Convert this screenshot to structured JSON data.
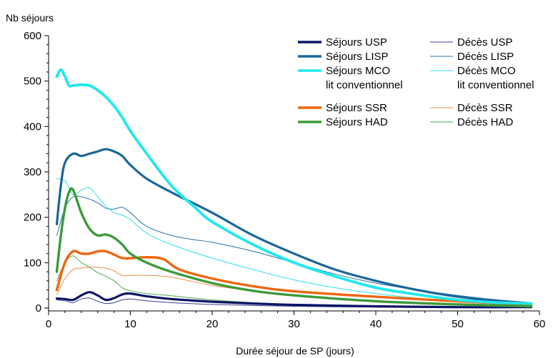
{
  "chart_data": {
    "type": "line",
    "title": "",
    "ylabel": "Nb séjours",
    "xlabel": "Durée séjour de SP (jours)",
    "xlim": [
      0,
      60
    ],
    "ylim": [
      0,
      600
    ],
    "xticks": [
      "0",
      "10",
      "20",
      "30",
      "40",
      "50",
      "60"
    ],
    "yticks": [
      "0",
      "100",
      "200",
      "300",
      "400",
      "500",
      "600"
    ],
    "grid": false,
    "legend_position": "top-right",
    "series": [
      {
        "name": "Séjours USP",
        "label_lines": [
          "Séjours USP"
        ],
        "color": "#0d1566",
        "width": 3.2,
        "x": [
          1,
          2,
          3,
          4,
          5,
          6,
          7,
          8,
          9,
          10,
          12,
          15,
          20,
          25,
          30,
          40,
          50,
          59
        ],
        "y": [
          21,
          20,
          18,
          28,
          35,
          28,
          18,
          22,
          30,
          32,
          26,
          20,
          14,
          10,
          7,
          4,
          2,
          2
        ]
      },
      {
        "name": "Séjours LISP",
        "label_lines": [
          "Séjours LISP"
        ],
        "color": "#1b6698",
        "width": 3.2,
        "x": [
          1,
          1.5,
          2,
          3,
          4,
          5,
          6,
          7,
          8,
          9,
          10,
          12,
          15,
          20,
          25,
          30,
          35,
          40,
          45,
          50,
          55,
          59
        ],
        "y": [
          185,
          270,
          320,
          340,
          335,
          340,
          345,
          350,
          345,
          335,
          315,
          285,
          255,
          210,
          160,
          120,
          85,
          60,
          40,
          25,
          15,
          10
        ]
      },
      {
        "name": "Séjours MCO lit conventionnel",
        "label_lines": [
          "Séjours MCO",
          "lit conventionnel"
        ],
        "color": "#20e8ee",
        "width": 3.8,
        "x": [
          1,
          1.5,
          2,
          2.5,
          3,
          4,
          5,
          6,
          7,
          8,
          9,
          10,
          12,
          15,
          18,
          20,
          25,
          30,
          35,
          40,
          45,
          50,
          55,
          59
        ],
        "y": [
          510,
          525,
          510,
          490,
          490,
          492,
          490,
          480,
          465,
          445,
          420,
          390,
          340,
          270,
          220,
          190,
          140,
          100,
          70,
          45,
          30,
          18,
          12,
          10
        ]
      },
      {
        "name": "Séjours SSR",
        "label_lines": [
          "Séjours SSR"
        ],
        "color": "#f0650f",
        "width": 3.4,
        "x": [
          1,
          2,
          3,
          4,
          5,
          6,
          7,
          8,
          9,
          10,
          12,
          14,
          16,
          20,
          25,
          30,
          40,
          50,
          59
        ],
        "y": [
          40,
          100,
          125,
          120,
          120,
          125,
          125,
          118,
          110,
          110,
          112,
          108,
          85,
          65,
          48,
          37,
          25,
          15,
          8
        ]
      },
      {
        "name": "Séjours HAD",
        "label_lines": [
          "Séjours HAD"
        ],
        "color": "#3c9a3a",
        "width": 3.4,
        "x": [
          1,
          1.5,
          2,
          2.5,
          3,
          4,
          5,
          6,
          7,
          8,
          9,
          10,
          12,
          15,
          20,
          25,
          30,
          40,
          50,
          59
        ],
        "y": [
          80,
          160,
          220,
          255,
          260,
          210,
          175,
          160,
          162,
          155,
          140,
          120,
          100,
          80,
          55,
          38,
          28,
          15,
          8,
          4
        ]
      },
      {
        "name": "Décès USP",
        "label_lines": [
          "Décès USP"
        ],
        "color": "#3b3f8c",
        "width": 1,
        "x": [
          1,
          2,
          3,
          4,
          5,
          6,
          7,
          8,
          9,
          10,
          12,
          15,
          20,
          30,
          40,
          50,
          59
        ],
        "y": [
          18,
          16,
          12,
          20,
          22,
          15,
          10,
          12,
          18,
          20,
          16,
          12,
          8,
          4,
          2,
          1,
          1
        ]
      },
      {
        "name": "Décès LISP",
        "label_lines": [
          "Décès LISP"
        ],
        "color": "#2a6fa0",
        "width": 1,
        "x": [
          1,
          2,
          3,
          4,
          5,
          6,
          7,
          8,
          9,
          10,
          12,
          15,
          18,
          20,
          25,
          30,
          35,
          40,
          45,
          50,
          55,
          59
        ],
        "y": [
          160,
          220,
          245,
          245,
          240,
          232,
          220,
          218,
          222,
          210,
          180,
          160,
          150,
          145,
          125,
          100,
          75,
          55,
          40,
          28,
          18,
          12
        ]
      },
      {
        "name": "Décès MCO lit conventionnel",
        "label_lines": [
          "Décès MCO",
          "lit conventionnel"
        ],
        "color": "#30dde6",
        "width": 1,
        "x": [
          1,
          2,
          3,
          4,
          5,
          6,
          7,
          8,
          9,
          10,
          12,
          15,
          20,
          25,
          30,
          35,
          40,
          45,
          50,
          55,
          59
        ],
        "y": [
          285,
          280,
          250,
          260,
          265,
          245,
          225,
          210,
          205,
          195,
          165,
          140,
          110,
          85,
          62,
          45,
          32,
          22,
          14,
          9,
          6
        ]
      },
      {
        "name": "Décès SSR",
        "label_lines": [
          "Décès SSR"
        ],
        "color": "#f28a48",
        "width": 1,
        "x": [
          1,
          2,
          3,
          4,
          5,
          6,
          7,
          8,
          9,
          10,
          12,
          15,
          20,
          25,
          30,
          40,
          50,
          59
        ],
        "y": [
          30,
          65,
          85,
          88,
          90,
          90,
          88,
          82,
          72,
          72,
          72,
          68,
          50,
          38,
          28,
          17,
          10,
          5
        ]
      },
      {
        "name": "Décès HAD",
        "label_lines": [
          "Décès HAD"
        ],
        "color": "#4ca84a",
        "width": 1,
        "x": [
          1,
          2,
          3,
          4,
          5,
          6,
          7,
          8,
          9,
          10,
          12,
          15,
          20,
          25,
          30,
          40,
          50,
          59
        ],
        "y": [
          60,
          100,
          115,
          100,
          90,
          78,
          70,
          60,
          45,
          38,
          32,
          27,
          18,
          12,
          8,
          4,
          2,
          1
        ]
      }
    ]
  }
}
